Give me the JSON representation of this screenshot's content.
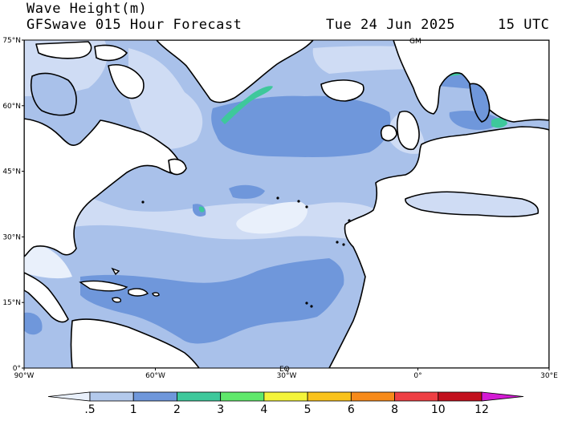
{
  "header": {
    "title": "Wave Height(m)",
    "subtitle": "GFSwave 015 Hour Forecast",
    "date": "Tue 24 Jun 2025",
    "time": "15 UTC"
  },
  "map": {
    "region": "North Atlantic",
    "projection": "equirectangular",
    "lon_range": [
      -90,
      30
    ],
    "lat_range": [
      0,
      75
    ],
    "lat_ticks": [
      "0°",
      "15°N",
      "30°N",
      "45°N",
      "60°N",
      "75°N"
    ],
    "lon_ticks": [
      "90°W",
      "60°W",
      "30°W",
      "0°",
      "30°E"
    ],
    "inner_labels": [
      "GM",
      "EQ"
    ],
    "land_color": "#ffffff",
    "coast_color": "#000000"
  },
  "colorbar": {
    "labels": [
      ".5",
      "1",
      "2",
      "3",
      "4",
      "5",
      "6",
      "8",
      "10",
      "12"
    ],
    "colors": [
      "#e9f0fb",
      "#b3c9ec",
      "#6f97db",
      "#3ec89b",
      "#5fe86b",
      "#f4f43a",
      "#f9c21c",
      "#f68a1a",
      "#ee3f44",
      "#c2101e",
      "#d41bd4"
    ]
  },
  "field": {
    "dominant_range_m": "1-2",
    "max_observed_m": "4",
    "palette": {
      "lt05": "#e9f0fb",
      "b05_1": "#cfdcf4",
      "b1_2": "#a9c1ea",
      "b2_3": "#6f97db",
      "b3_4": "#3ec89b"
    }
  }
}
